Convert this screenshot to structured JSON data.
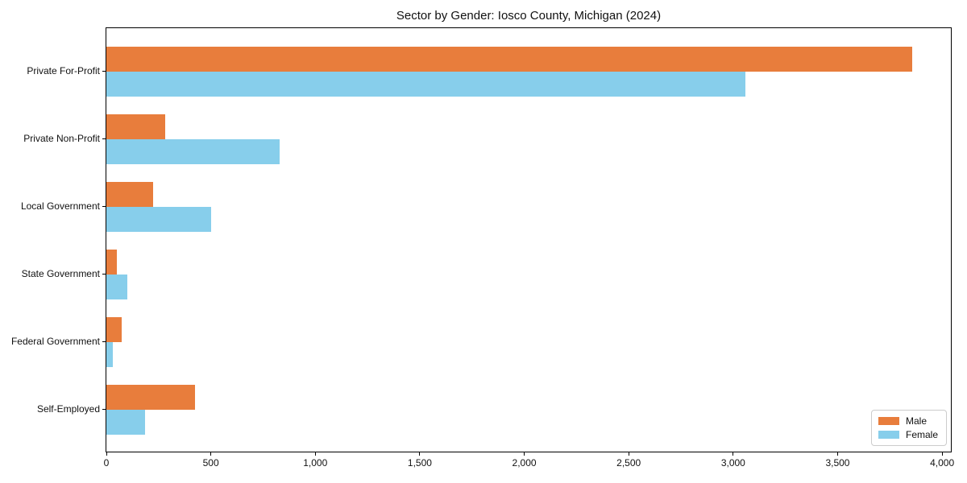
{
  "chart_data": {
    "type": "bar",
    "orientation": "horizontal",
    "title": "Sector by Gender: Iosco County, Michigan (2024)",
    "categories": [
      "Private For-Profit",
      "Private Non-Profit",
      "Local Government",
      "State Government",
      "Federal Government",
      "Self-Employed"
    ],
    "series": [
      {
        "name": "Male",
        "color": "#E87D3C",
        "values": [
          3855,
          280,
          225,
          50,
          75,
          425
        ]
      },
      {
        "name": "Female",
        "color": "#87CEEB",
        "values": [
          3060,
          830,
          500,
          100,
          30,
          185
        ]
      }
    ],
    "x_ticks": [
      0,
      500,
      1000,
      1500,
      2000,
      2500,
      3000,
      3500,
      4000
    ],
    "x_tick_labels": [
      "0",
      "500",
      "1,000",
      "1,500",
      "2,000",
      "2,500",
      "3,000",
      "3,500",
      "4,000"
    ],
    "xlim": [
      0,
      4042
    ],
    "xlabel": "",
    "ylabel": "",
    "grid": false,
    "legend_position": "lower right"
  }
}
